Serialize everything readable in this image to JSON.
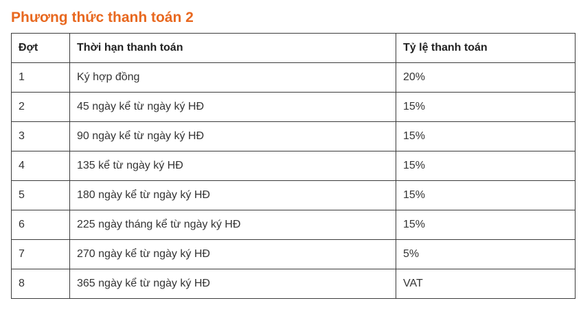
{
  "heading": "Phương thức thanh toán 2",
  "table": {
    "headers": [
      "Đợt",
      "Thời hạn thanh toán",
      "Tỷ lệ thanh toán"
    ],
    "rows": [
      [
        "1",
        "Ký hợp đồng",
        "20%"
      ],
      [
        "2",
        "45 ngày kể từ ngày ký HĐ",
        "15%"
      ],
      [
        "3",
        "90 ngày kể từ ngày ký HĐ",
        "15%"
      ],
      [
        "4",
        "135 kể từ ngày ký HĐ",
        "15%"
      ],
      [
        "5",
        "180 ngày kể từ ngày ký HĐ",
        "15%"
      ],
      [
        "6",
        "225 ngày tháng kể từ ngày ký HĐ",
        "15%"
      ],
      [
        "7",
        "270 ngày kể từ ngày ký HĐ",
        "5%"
      ],
      [
        "8",
        "365 ngày kể từ ngày ký HĐ",
        "VAT"
      ]
    ]
  },
  "colors": {
    "heading": "#e8681f",
    "border": "#3a3a3a",
    "text": "#333333"
  }
}
